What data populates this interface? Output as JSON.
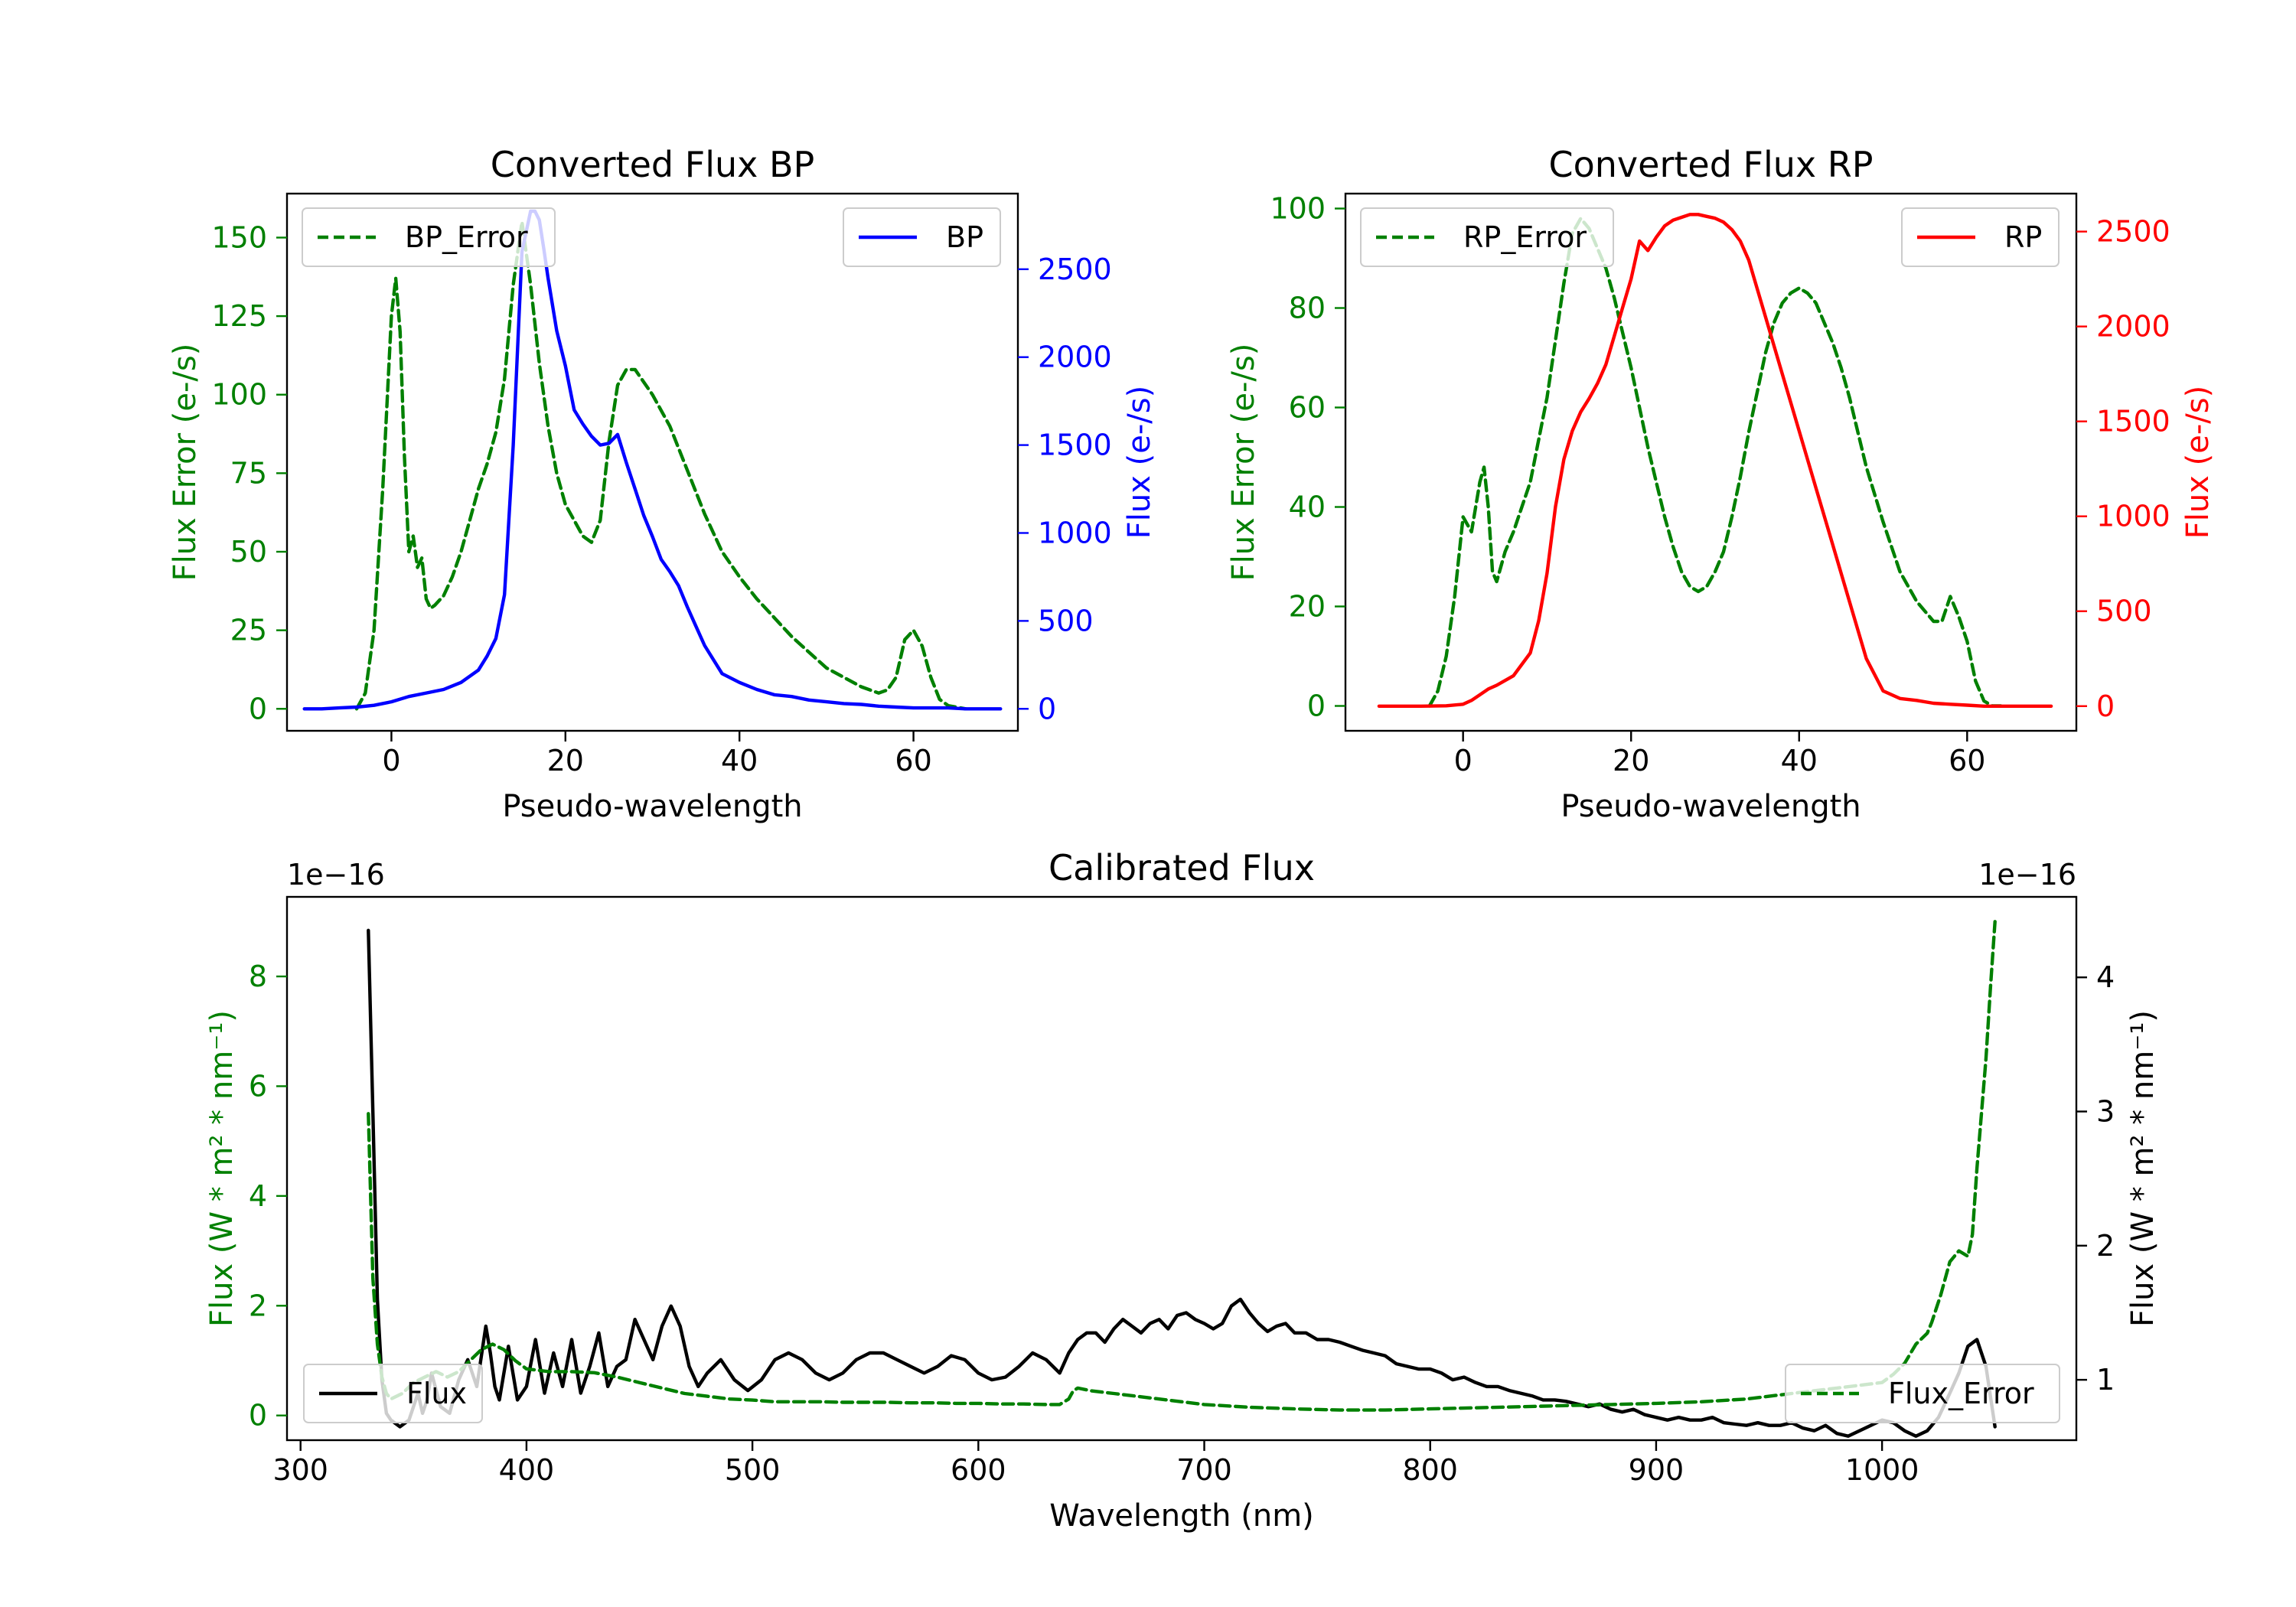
{
  "chart_data": [
    {
      "id": "bp",
      "type": "line",
      "title": "Converted Flux BP",
      "xlabel": "Pseudo-wavelength",
      "ylabel_left": "Flux Error (e-/s)",
      "ylabel_right": "Flux (e-/s)",
      "xlim": [
        -12,
        72
      ],
      "ylim_left": [
        -7,
        164
      ],
      "ylim_right": [
        -125,
        2930
      ],
      "x_ticks": [
        0,
        20,
        40,
        60
      ],
      "y_ticks_left": [
        0,
        25,
        50,
        75,
        100,
        125,
        150
      ],
      "y_ticks_right": [
        0,
        500,
        1000,
        1500,
        2000,
        2500
      ],
      "left_axis_color": "#008000",
      "right_axis_color": "#0000ff",
      "series": [
        {
          "name": "BP_Error",
          "axis": "left",
          "color": "#008000",
          "style": "dashed",
          "x": [
            -4,
            -3,
            -2,
            -1,
            0,
            0.5,
            1,
            1.5,
            2,
            2.5,
            3,
            3.5,
            4,
            4.5,
            5,
            6,
            7,
            8,
            9,
            10,
            11,
            12,
            13,
            14,
            15,
            16,
            17,
            18,
            19,
            20,
            21,
            22,
            23,
            24,
            25,
            26,
            27,
            28,
            29,
            30,
            32,
            34,
            36,
            38,
            40,
            42,
            44,
            46,
            48,
            50,
            52,
            54,
            56,
            57,
            58,
            59,
            60,
            61,
            62,
            63,
            64,
            66
          ],
          "y": [
            0,
            5,
            25,
            70,
            125,
            137,
            120,
            80,
            50,
            55,
            45,
            48,
            35,
            32,
            33,
            36,
            42,
            50,
            60,
            70,
            78,
            88,
            105,
            135,
            155,
            135,
            110,
            90,
            75,
            65,
            60,
            55,
            53,
            60,
            85,
            103,
            108,
            108,
            104,
            100,
            90,
            76,
            62,
            50,
            42,
            35,
            29,
            23,
            18,
            13,
            10,
            7,
            5,
            6,
            10,
            22,
            25,
            20,
            10,
            3,
            1,
            0
          ]
        },
        {
          "name": "BP",
          "axis": "right",
          "color": "#0000ff",
          "style": "solid",
          "x": [
            -10,
            -8,
            -6,
            -4,
            -2,
            0,
            2,
            4,
            6,
            8,
            10,
            11,
            12,
            13,
            14,
            15,
            16,
            16.5,
            17,
            17.5,
            18,
            19,
            20,
            21,
            22,
            23,
            24,
            25,
            26,
            27,
            28,
            29,
            30,
            31,
            32,
            33,
            34,
            35,
            36,
            38,
            40,
            42,
            44,
            46,
            48,
            50,
            52,
            54,
            56,
            58,
            60,
            62,
            64,
            66,
            68,
            70
          ],
          "y": [
            0,
            0,
            5,
            10,
            20,
            40,
            70,
            90,
            110,
            150,
            220,
            300,
            400,
            650,
            1500,
            2600,
            2830,
            2830,
            2780,
            2620,
            2450,
            2150,
            1950,
            1700,
            1620,
            1550,
            1500,
            1510,
            1560,
            1400,
            1250,
            1100,
            980,
            850,
            780,
            700,
            580,
            470,
            360,
            200,
            150,
            110,
            80,
            70,
            50,
            40,
            30,
            25,
            15,
            10,
            5,
            5,
            5,
            0,
            0,
            0
          ]
        }
      ]
    },
    {
      "id": "rp",
      "type": "line",
      "title": "Converted Flux RP",
      "xlabel": "Pseudo-wavelength",
      "ylabel_left": "Flux Error (e-/s)",
      "ylabel_right": "Flux (e-/s)",
      "xlim": [
        -14,
        73
      ],
      "ylim_left": [
        -5,
        103
      ],
      "ylim_right": [
        -130,
        2700
      ],
      "x_ticks": [
        0,
        20,
        40,
        60
      ],
      "y_ticks_left": [
        0,
        20,
        40,
        60,
        80,
        100
      ],
      "y_ticks_right": [
        0,
        500,
        1000,
        1500,
        2000,
        2500
      ],
      "left_axis_color": "#008000",
      "right_axis_color": "#ff0000",
      "series": [
        {
          "name": "RP_Error",
          "axis": "left",
          "color": "#008000",
          "style": "dashed",
          "x": [
            -4,
            -3,
            -2,
            -1,
            0,
            1,
            2,
            2.5,
            3,
            3.5,
            4,
            5,
            6,
            8,
            10,
            12,
            13,
            14,
            15,
            16,
            17,
            18,
            19,
            20,
            21,
            22,
            23,
            24,
            25,
            26,
            27,
            28,
            29,
            30,
            31,
            32,
            33,
            34,
            35,
            36,
            37,
            38,
            39,
            40,
            41,
            42,
            43,
            44,
            45,
            46,
            47,
            48,
            50,
            52,
            54,
            55,
            56,
            57,
            58,
            59,
            60,
            61,
            62,
            63,
            64
          ],
          "y": [
            0,
            3,
            10,
            22,
            38,
            35,
            45,
            48,
            40,
            27,
            25,
            31,
            35,
            45,
            62,
            85,
            95,
            98,
            96,
            92,
            88,
            82,
            75,
            68,
            60,
            52,
            45,
            38,
            32,
            27,
            24,
            23,
            24,
            27,
            31,
            38,
            46,
            55,
            63,
            71,
            77,
            81,
            83,
            84,
            83,
            81,
            77,
            73,
            68,
            62,
            55,
            48,
            37,
            27,
            21,
            19,
            17,
            17,
            22,
            18,
            13,
            5,
            1,
            0,
            0
          ]
        },
        {
          "name": "RP",
          "axis": "right",
          "color": "#ff0000",
          "style": "solid",
          "x": [
            -10,
            -5,
            -2,
            0,
            1,
            2,
            3,
            4,
            6,
            8,
            9,
            10,
            11,
            12,
            13,
            14,
            15,
            16,
            17,
            18,
            19,
            20,
            21,
            22,
            23,
            24,
            25,
            26,
            27,
            28,
            29,
            30,
            31,
            32,
            33,
            34,
            35,
            36,
            37,
            38,
            40,
            42,
            44,
            46,
            48,
            50,
            52,
            54,
            56,
            58,
            60,
            62,
            65,
            70
          ],
          "y": [
            0,
            0,
            2,
            10,
            30,
            60,
            90,
            110,
            160,
            280,
            450,
            700,
            1050,
            1300,
            1450,
            1550,
            1620,
            1700,
            1800,
            1950,
            2100,
            2250,
            2450,
            2400,
            2470,
            2530,
            2560,
            2575,
            2590,
            2590,
            2580,
            2570,
            2550,
            2510,
            2450,
            2350,
            2200,
            2050,
            1900,
            1750,
            1450,
            1150,
            850,
            550,
            250,
            80,
            40,
            30,
            15,
            10,
            5,
            0,
            0,
            0
          ]
        }
      ]
    },
    {
      "id": "cal",
      "type": "line",
      "title": "Calibrated Flux",
      "xlabel": "Wavelength (nm)",
      "ylabel_left": "Flux (W * m² * nm⁻¹)",
      "ylabel_right": "Flux (W * m² * nm⁻¹)",
      "offset_left": "1e−16",
      "offset_right": "1e−16",
      "xlim": [
        294,
        1086
      ],
      "ylim_left": [
        -0.45,
        9.45
      ],
      "ylim_right": [
        0.55,
        4.6
      ],
      "x_ticks": [
        300,
        400,
        500,
        600,
        700,
        800,
        900,
        1000
      ],
      "y_ticks_left": [
        0,
        2,
        4,
        6,
        8
      ],
      "y_ticks_right": [
        1,
        2,
        3,
        4
      ],
      "left_axis_color": "#008000",
      "right_axis_color": "#000000",
      "series": [
        {
          "name": "Flux",
          "axis": "right",
          "color": "#000000",
          "style": "solid",
          "x": [
            330,
            332,
            334,
            336,
            338,
            340,
            344,
            348,
            352,
            354,
            356,
            358,
            362,
            366,
            370,
            374,
            378,
            382,
            384,
            386,
            388,
            392,
            396,
            400,
            404,
            408,
            412,
            416,
            420,
            424,
            428,
            432,
            436,
            440,
            444,
            448,
            452,
            456,
            460,
            464,
            468,
            472,
            476,
            480,
            486,
            492,
            498,
            504,
            510,
            516,
            522,
            528,
            534,
            540,
            546,
            552,
            558,
            564,
            570,
            576,
            582,
            588,
            594,
            600,
            606,
            612,
            618,
            624,
            630,
            636,
            640,
            644,
            648,
            652,
            656,
            660,
            664,
            668,
            672,
            676,
            680,
            684,
            688,
            692,
            696,
            700,
            704,
            708,
            712,
            716,
            720,
            724,
            728,
            732,
            736,
            740,
            745,
            750,
            755,
            760,
            765,
            770,
            775,
            780,
            785,
            790,
            795,
            800,
            805,
            810,
            815,
            820,
            825,
            830,
            835,
            840,
            845,
            850,
            855,
            860,
            865,
            870,
            875,
            880,
            885,
            890,
            895,
            900,
            905,
            910,
            915,
            920,
            925,
            930,
            935,
            940,
            945,
            950,
            955,
            960,
            965,
            970,
            975,
            980,
            985,
            990,
            995,
            1000,
            1005,
            1010,
            1015,
            1020,
            1025,
            1030,
            1034,
            1038,
            1042,
            1046,
            1050
          ],
          "y": [
            4.35,
            3.0,
            1.6,
            1.0,
            0.75,
            0.7,
            0.65,
            0.7,
            0.9,
            0.75,
            0.85,
            1.05,
            0.8,
            0.75,
            1.0,
            1.15,
            0.95,
            1.4,
            1.2,
            0.95,
            0.85,
            1.25,
            0.85,
            0.95,
            1.3,
            0.9,
            1.2,
            0.95,
            1.3,
            0.9,
            1.1,
            1.35,
            0.95,
            1.1,
            1.15,
            1.45,
            1.3,
            1.15,
            1.4,
            1.55,
            1.4,
            1.1,
            0.95,
            1.05,
            1.15,
            1.0,
            0.92,
            1.0,
            1.15,
            1.2,
            1.15,
            1.05,
            1.0,
            1.05,
            1.15,
            1.2,
            1.2,
            1.15,
            1.1,
            1.05,
            1.1,
            1.18,
            1.15,
            1.05,
            1.0,
            1.02,
            1.1,
            1.2,
            1.15,
            1.05,
            1.2,
            1.3,
            1.35,
            1.35,
            1.28,
            1.38,
            1.45,
            1.4,
            1.35,
            1.42,
            1.45,
            1.38,
            1.48,
            1.5,
            1.45,
            1.42,
            1.38,
            1.42,
            1.55,
            1.6,
            1.5,
            1.42,
            1.36,
            1.4,
            1.42,
            1.35,
            1.35,
            1.3,
            1.3,
            1.28,
            1.25,
            1.22,
            1.2,
            1.18,
            1.12,
            1.1,
            1.08,
            1.08,
            1.05,
            1.0,
            1.02,
            0.98,
            0.95,
            0.95,
            0.92,
            0.9,
            0.88,
            0.85,
            0.85,
            0.84,
            0.82,
            0.8,
            0.82,
            0.78,
            0.76,
            0.78,
            0.74,
            0.72,
            0.7,
            0.72,
            0.7,
            0.7,
            0.72,
            0.68,
            0.67,
            0.66,
            0.68,
            0.66,
            0.66,
            0.68,
            0.64,
            0.62,
            0.66,
            0.6,
            0.58,
            0.62,
            0.66,
            0.7,
            0.68,
            0.62,
            0.58,
            0.62,
            0.72,
            0.9,
            1.05,
            1.25,
            1.3,
            1.1,
            0.65
          ]
        },
        {
          "name": "Flux_Error",
          "axis": "left",
          "color": "#008000",
          "style": "dashed",
          "x": [
            330,
            332,
            334,
            336,
            338,
            340,
            345,
            350,
            355,
            360,
            365,
            370,
            375,
            380,
            385,
            390,
            395,
            400,
            410,
            420,
            430,
            440,
            450,
            460,
            470,
            480,
            490,
            500,
            510,
            520,
            530,
            540,
            550,
            560,
            570,
            580,
            590,
            600,
            610,
            620,
            630,
            636,
            640,
            642,
            644,
            650,
            660,
            670,
            680,
            690,
            700,
            720,
            740,
            760,
            780,
            800,
            820,
            840,
            860,
            880,
            900,
            920,
            940,
            960,
            980,
            1000,
            1005,
            1010,
            1015,
            1020,
            1022,
            1026,
            1030,
            1034,
            1038,
            1040,
            1042,
            1044,
            1046,
            1048,
            1050
          ],
          "y": [
            5.5,
            2.5,
            1.3,
            0.7,
            0.4,
            0.3,
            0.4,
            0.6,
            0.7,
            0.8,
            0.7,
            0.8,
            1.0,
            1.2,
            1.3,
            1.2,
            1.0,
            0.85,
            0.8,
            0.8,
            0.78,
            0.7,
            0.6,
            0.5,
            0.4,
            0.35,
            0.3,
            0.28,
            0.25,
            0.25,
            0.25,
            0.24,
            0.24,
            0.24,
            0.23,
            0.23,
            0.22,
            0.22,
            0.21,
            0.21,
            0.2,
            0.2,
            0.3,
            0.45,
            0.5,
            0.45,
            0.4,
            0.35,
            0.3,
            0.25,
            0.2,
            0.15,
            0.12,
            0.1,
            0.1,
            0.12,
            0.14,
            0.16,
            0.18,
            0.2,
            0.22,
            0.25,
            0.3,
            0.4,
            0.5,
            0.6,
            0.75,
            0.95,
            1.3,
            1.5,
            1.7,
            2.2,
            2.8,
            3.0,
            2.9,
            3.3,
            4.5,
            5.5,
            6.5,
            7.8,
            9.0
          ]
        }
      ]
    }
  ]
}
